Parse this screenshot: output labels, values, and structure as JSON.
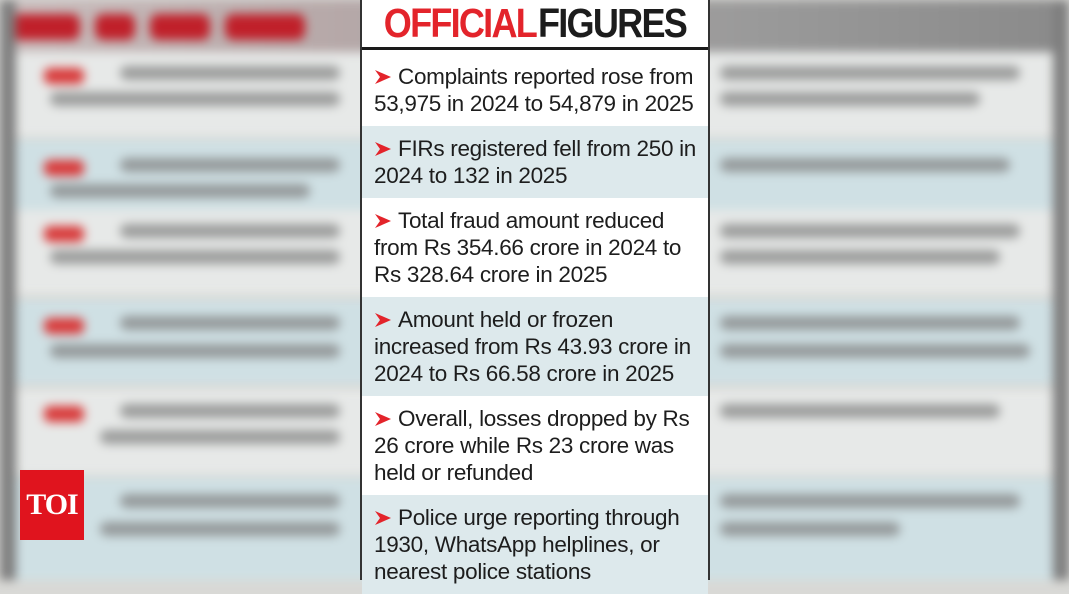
{
  "header": {
    "word1": "OFFICIAL",
    "word2": "FIGURES"
  },
  "items": [
    {
      "text": "Complaints reported rose from 53,975 in 2024 to 54,879 in 2025"
    },
    {
      "text": "FIRs registered fell from 250 in 2024 to 132 in 2025"
    },
    {
      "text": "Total fraud amount reduced from Rs 354.66 crore in 2024 to Rs 328.64 crore in 2025"
    },
    {
      "text": "Amount held or frozen increased from Rs 43.93 crore in 2024 to Rs 66.58 crore in 2025"
    },
    {
      "text": "Overall, losses dropped by Rs 26 crore while Rs 23 crore was held or refunded"
    },
    {
      "text": "Police urge reporting through 1930, WhatsApp helplines, or nearest police stations"
    }
  ],
  "logo": {
    "text": "TOI"
  },
  "colors": {
    "accent_red": "#e3242b",
    "text_dark": "#1c1c1c",
    "row_tint": "#dde9ec",
    "logo_red": "#e0141e"
  }
}
